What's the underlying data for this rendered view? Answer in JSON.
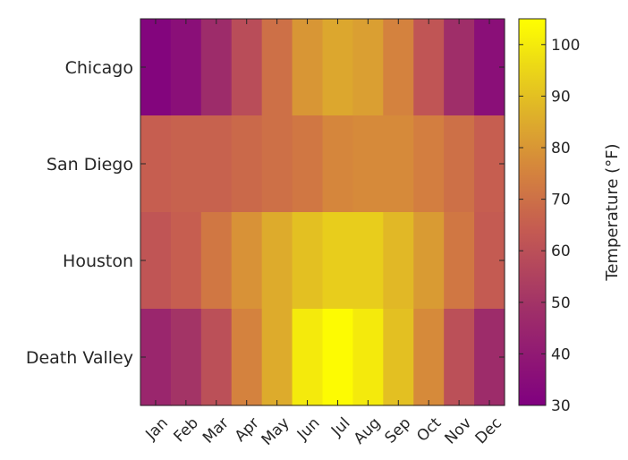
{
  "chart_data": {
    "type": "heatmap",
    "rows": [
      "Chicago",
      "San Diego",
      "Houston",
      "Death Valley"
    ],
    "columns": [
      "Jan",
      "Feb",
      "Mar",
      "Apr",
      "May",
      "Jun",
      "Jul",
      "Aug",
      "Sep",
      "Oct",
      "Nov",
      "Dec"
    ],
    "values": [
      [
        32,
        36,
        47,
        59,
        70,
        80,
        84,
        82,
        75,
        62,
        48,
        36
      ],
      [
        65,
        66,
        66,
        68,
        70,
        72,
        76,
        77,
        77,
        74,
        70,
        65
      ],
      [
        62,
        65,
        72,
        79,
        85,
        90,
        93,
        93,
        88,
        81,
        72,
        64
      ],
      [
        45,
        50,
        60,
        75,
        85,
        100,
        104,
        100,
        90,
        77,
        60,
        47
      ]
    ],
    "colorbar": {
      "label": "Temperature (°F)",
      "min": 30,
      "max": 105,
      "ticks": [
        30,
        40,
        50,
        60,
        70,
        80,
        90,
        100
      ]
    },
    "colormap": "plasma-like (purple → orange → yellow)",
    "grid": false
  }
}
